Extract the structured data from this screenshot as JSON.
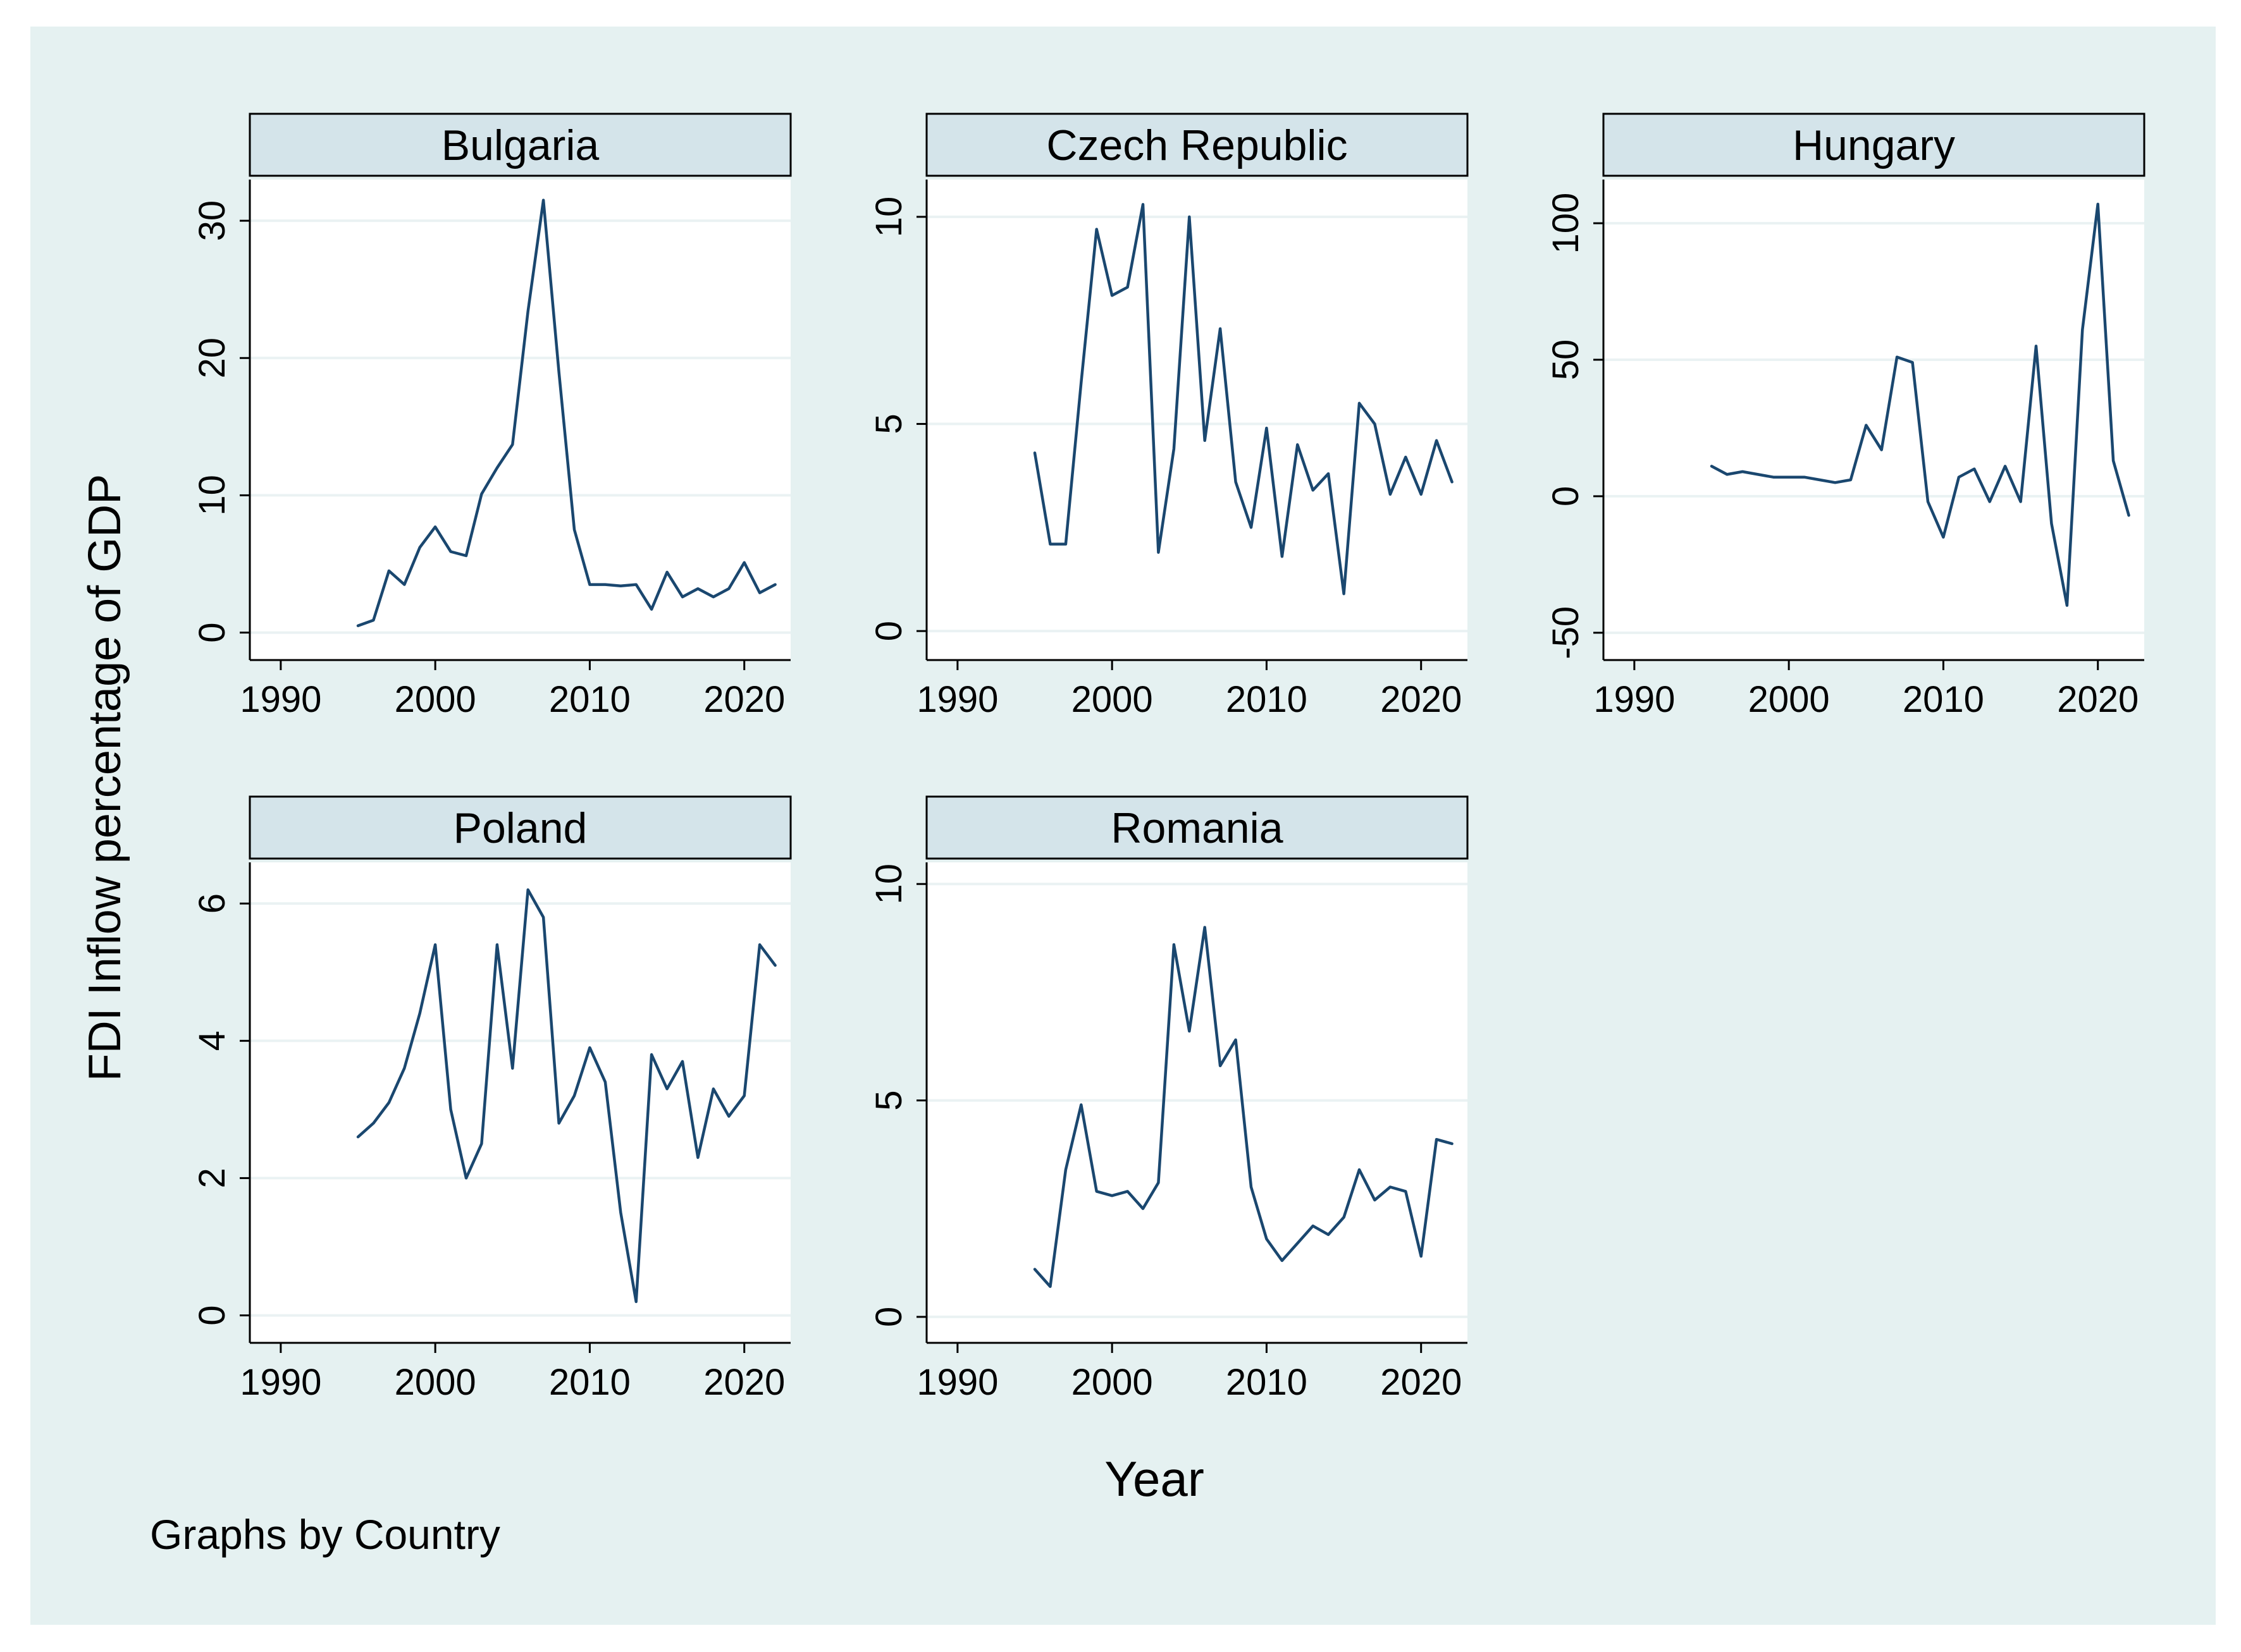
{
  "colors": {
    "outer_background": "#ffffff",
    "graph_region": "#e5f1f1",
    "plot_region": "#ffffff",
    "strip": "#d4e4ea",
    "line": "#1a476f",
    "grid": "#eaf2f3",
    "axis": "#000000"
  },
  "figure": {
    "ytitle": "FDI Inflow percentage of GDP",
    "xtitle": "Year",
    "note": "Graphs by Country"
  },
  "chart_data": [
    {
      "type": "line",
      "title": "Bulgaria",
      "xlabel": "Year",
      "ylabel": "FDI Inflow percentage of GDP",
      "xlim": [
        1988,
        2023
      ],
      "xticks": [
        1990,
        2000,
        2010,
        2020
      ],
      "ylim": [
        -2,
        33
      ],
      "yticks": [
        0,
        10,
        20,
        30
      ],
      "grid": true,
      "x": [
        1995,
        1996,
        1997,
        1998,
        1999,
        2000,
        2001,
        2002,
        2003,
        2004,
        2005,
        2006,
        2007,
        2008,
        2009,
        2010,
        2011,
        2012,
        2013,
        2014,
        2015,
        2016,
        2017,
        2018,
        2019,
        2020,
        2021,
        2022
      ],
      "values": [
        0.5,
        0.9,
        4.5,
        3.5,
        6.2,
        7.7,
        5.9,
        5.6,
        10.1,
        12.0,
        13.7,
        23.4,
        31.5,
        19.0,
        7.5,
        3.5,
        3.5,
        3.4,
        3.5,
        1.7,
        4.4,
        2.6,
        3.2,
        2.6,
        3.2,
        5.1,
        2.9,
        3.5
      ]
    },
    {
      "type": "line",
      "title": "Czech Republic",
      "xlabel": "Year",
      "ylabel": "FDI Inflow percentage of GDP",
      "xlim": [
        1988,
        2023
      ],
      "xticks": [
        1990,
        2000,
        2010,
        2020
      ],
      "ylim": [
        -0.7,
        10.9
      ],
      "yticks": [
        0,
        5,
        10
      ],
      "grid": true,
      "x": [
        1995,
        1996,
        1997,
        1998,
        1999,
        2000,
        2001,
        2002,
        2003,
        2004,
        2005,
        2006,
        2007,
        2008,
        2009,
        2010,
        2011,
        2012,
        2013,
        2014,
        2015,
        2016,
        2017,
        2018,
        2019,
        2020,
        2021,
        2022
      ],
      "values": [
        4.3,
        2.1,
        2.1,
        6.0,
        9.7,
        8.1,
        8.3,
        10.3,
        1.9,
        4.4,
        10.0,
        4.6,
        7.3,
        3.6,
        2.5,
        4.9,
        1.8,
        4.5,
        3.4,
        3.8,
        0.9,
        5.5,
        5.0,
        3.3,
        4.2,
        3.3,
        4.6,
        3.6
      ]
    },
    {
      "type": "line",
      "title": "Hungary",
      "xlabel": "Year",
      "ylabel": "FDI Inflow percentage of GDP",
      "xlim": [
        1988,
        2023
      ],
      "xticks": [
        1990,
        2000,
        2010,
        2020
      ],
      "ylim": [
        -60,
        116
      ],
      "yticks": [
        -50,
        0,
        50,
        100
      ],
      "grid": true,
      "x": [
        1995,
        1996,
        1997,
        1998,
        1999,
        2000,
        2001,
        2002,
        2003,
        2004,
        2005,
        2006,
        2007,
        2008,
        2009,
        2010,
        2011,
        2012,
        2013,
        2014,
        2015,
        2016,
        2017,
        2018,
        2019,
        2020,
        2021,
        2022
      ],
      "values": [
        11,
        8,
        9,
        8,
        7,
        7,
        7,
        6,
        5,
        6,
        26,
        17,
        51,
        49,
        -2,
        -15,
        7,
        10,
        -2,
        11,
        -2,
        55,
        -10,
        -40,
        61,
        107,
        13,
        -7
      ]
    },
    {
      "type": "line",
      "title": "Poland",
      "xlabel": "Year",
      "ylabel": "FDI Inflow percentage of GDP",
      "xlim": [
        1988,
        2023
      ],
      "xticks": [
        1990,
        2000,
        2010,
        2020
      ],
      "ylim": [
        -0.4,
        6.6
      ],
      "yticks": [
        0,
        2,
        4,
        6
      ],
      "grid": true,
      "x": [
        1995,
        1996,
        1997,
        1998,
        1999,
        2000,
        2001,
        2002,
        2003,
        2004,
        2005,
        2006,
        2007,
        2008,
        2009,
        2010,
        2011,
        2012,
        2013,
        2014,
        2015,
        2016,
        2017,
        2018,
        2019,
        2020,
        2021,
        2022
      ],
      "values": [
        2.6,
        2.8,
        3.1,
        3.6,
        4.4,
        5.4,
        3.0,
        2.0,
        2.5,
        5.4,
        3.6,
        6.2,
        5.8,
        2.8,
        3.2,
        3.9,
        3.4,
        1.5,
        0.2,
        3.8,
        3.3,
        3.7,
        2.3,
        3.3,
        2.9,
        3.2,
        5.4,
        5.1
      ]
    },
    {
      "type": "line",
      "title": "Romania",
      "xlabel": "Year",
      "ylabel": "FDI Inflow percentage of GDP",
      "xlim": [
        1988,
        2023
      ],
      "xticks": [
        1990,
        2000,
        2010,
        2020
      ],
      "ylim": [
        -0.6,
        10.5
      ],
      "yticks": [
        0,
        5,
        10
      ],
      "grid": true,
      "x": [
        1995,
        1996,
        1997,
        1998,
        1999,
        2000,
        2001,
        2002,
        2003,
        2004,
        2005,
        2006,
        2007,
        2008,
        2009,
        2010,
        2011,
        2012,
        2013,
        2014,
        2015,
        2016,
        2017,
        2018,
        2019,
        2020,
        2021,
        2022
      ],
      "values": [
        1.1,
        0.7,
        3.4,
        4.9,
        2.9,
        2.8,
        2.9,
        2.5,
        3.1,
        8.6,
        6.6,
        9.0,
        5.8,
        6.4,
        3.0,
        1.8,
        1.3,
        1.7,
        2.1,
        1.9,
        2.3,
        3.4,
        2.7,
        3.0,
        2.9,
        1.4,
        4.1,
        4.0
      ]
    }
  ]
}
